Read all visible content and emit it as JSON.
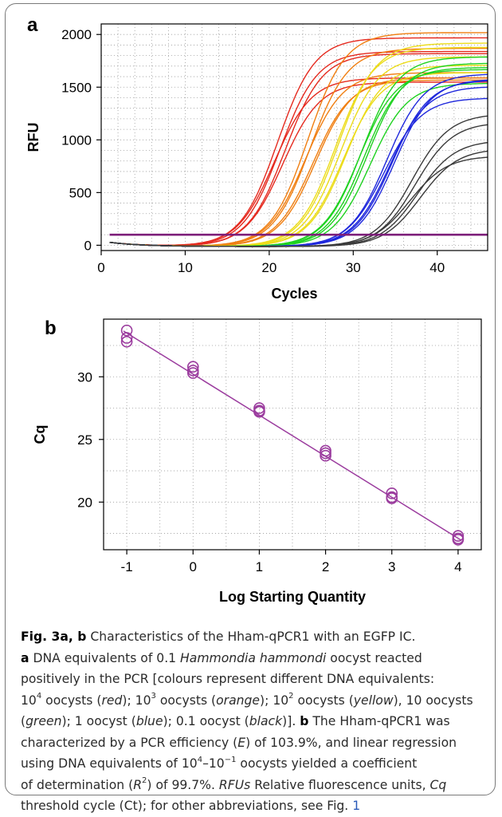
{
  "panels": [
    {
      "id": "a",
      "label": "a"
    },
    {
      "id": "b",
      "label": "b"
    }
  ],
  "chart_data": [
    {
      "type": "line",
      "panel": "a",
      "xlabel": "Cycles",
      "ylabel": "RFU",
      "xlim": [
        0,
        46
      ],
      "ylim": [
        -50,
        2100
      ],
      "xticks": [
        0,
        10,
        20,
        30,
        40
      ],
      "yticks": [
        0,
        500,
        1000,
        1500,
        2000
      ],
      "grid": true,
      "threshold": {
        "y": 100,
        "color": "#7d1f7a"
      },
      "series": [
        {
          "color": "#e52a1f",
          "cq": [
            20.0,
            20.3,
            20.6,
            19.6,
            20.9
          ],
          "plateau": [
            1980,
            1850,
            1560,
            1600,
            1830
          ]
        },
        {
          "color": "#f07f12",
          "cq": [
            23.6,
            23.9,
            24.2,
            23.3,
            24.5
          ],
          "plateau": [
            2030,
            1880,
            1580,
            1650,
            1600
          ]
        },
        {
          "color": "#ecdc1a",
          "cq": [
            27.2,
            27.5,
            27.8,
            26.9,
            28.1
          ],
          "plateau": [
            1930,
            1800,
            1650,
            1890,
            1720
          ]
        },
        {
          "color": "#1ed220",
          "cq": [
            30.0,
            30.3,
            30.7,
            29.7,
            31.0
          ],
          "plateau": [
            1800,
            1700,
            1740,
            1680,
            1550
          ]
        },
        {
          "color": "#1f28dc",
          "cq": [
            33.0,
            33.3,
            33.6,
            32.7,
            33.9
          ],
          "plateau": [
            1640,
            1520,
            1580,
            1410,
            1590
          ]
        },
        {
          "color": "#3a3a3a",
          "cq": [
            36.0,
            36.4,
            36.7,
            35.7,
            37.0
          ],
          "plateau": [
            1260,
            1180,
            1010,
            860,
            930
          ]
        }
      ]
    },
    {
      "type": "scatter",
      "panel": "b",
      "xlabel": "Log Starting Quantity",
      "ylabel": "Cq",
      "xlim": [
        -1.35,
        4.35
      ],
      "ylim": [
        16.2,
        34.6
      ],
      "xticks": [
        -1,
        0,
        1,
        2,
        3,
        4
      ],
      "yticks": [
        20,
        25,
        30
      ],
      "grid": true,
      "color": "#9b3c9e",
      "x": [
        -1,
        -1,
        -1,
        0,
        0,
        0,
        1,
        1,
        1,
        2,
        2,
        2,
        3,
        3,
        3,
        4,
        4,
        4
      ],
      "y": [
        33.7,
        33.1,
        32.8,
        30.8,
        30.5,
        30.3,
        27.5,
        27.3,
        27.2,
        24.1,
        23.9,
        23.7,
        20.7,
        20.4,
        20.3,
        17.3,
        17.1,
        17.0
      ],
      "fit_line": {
        "x": [
          -1.05,
          4.05
        ],
        "y": [
          33.65,
          16.95
        ]
      }
    }
  ],
  "caption": {
    "l1_title": "Fig. 3a, b",
    "l1_text": "  Characteristics of the Hham-qPCR1 with an EGFP IC.",
    "l2_a": "a",
    "l2_text": " DNA equivalents of 0.1 ",
    "l2_italic": "Hammondia hammondi",
    "l2_end": " oocyst reacted",
    "l3": "positively in the PCR [colours represent different DNA equivalents:",
    "l4_10": "10",
    "l4_e4": "4",
    "l4_oo1": " oocysts (",
    "l4_red": "red",
    "l4_s1": "); 10",
    "l4_e3": "3",
    "l4_oo2": " oocysts (",
    "l4_orange": "orange",
    "l4_s2": "); 10",
    "l4_e2": "2",
    "l4_oo3": " oocysts (",
    "l4_yellow": "yellow",
    "l4_s3": "), 10 oocysts",
    "l5_open": "(",
    "l5_green": "green",
    "l5_s1": "); 1 oocyst (",
    "l5_blue": "blue",
    "l5_s2": "); 0.1 oocyst (",
    "l5_black": "black",
    "l5_s3": ")]. ",
    "l5_b": "b",
    "l5_end": " The Hham-qPCR1 was",
    "l6_a": "characterized by a PCR efficiency (",
    "l6_E": "E",
    "l6_b": ") of 103.9%, and linear regression",
    "l7_a": "using DNA equivalents of 10",
    "l7_e4": "4",
    "l7_dash": "–10",
    "l7_em1": "−1",
    "l7_b": " oocysts yielded a coefficient",
    "l8_a": "of determination (",
    "l8_R": "R",
    "l8_2": "2",
    "l8_b": ") of 99.7%. ",
    "l8_rfus": "RFUs",
    "l8_c": " Relative fluorescence units, ",
    "l8_cq": "Cq",
    "l9_a": "threshold cycle (Ct); for other abbreviations, see Fig. ",
    "l9_link": "1"
  }
}
